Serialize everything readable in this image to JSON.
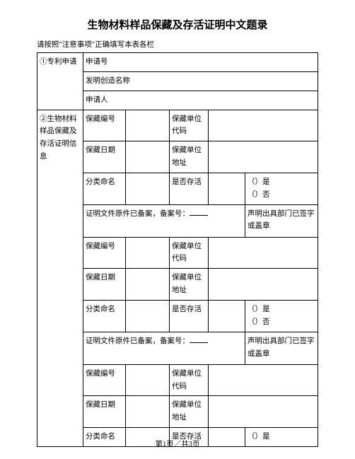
{
  "title": "生物材料样品保藏及存活证明中文题录",
  "instruction": "请按照\"注意事项\"正确填写本表各栏",
  "section1": {
    "heading": "①专利申请",
    "r1": "申请号",
    "r2": "发明创造名称",
    "r3": "申请人"
  },
  "section2": {
    "heading": "②生物材料样品保藏及存活证明信息",
    "block": {
      "deposit_no": "保藏编号",
      "deposit_unit_code": "保藏单位代码",
      "deposit_date": "保藏日期",
      "deposit_unit_addr": "保藏单位地址",
      "classification": "分类命名",
      "viability": "是否存活",
      "yes": "（）是",
      "no": "（）否",
      "archive_prefix": "证明文件原件已备案，备案号：",
      "stamp": "声明出具部门已签字或盖章"
    }
  },
  "footer": "第1页／共3页"
}
